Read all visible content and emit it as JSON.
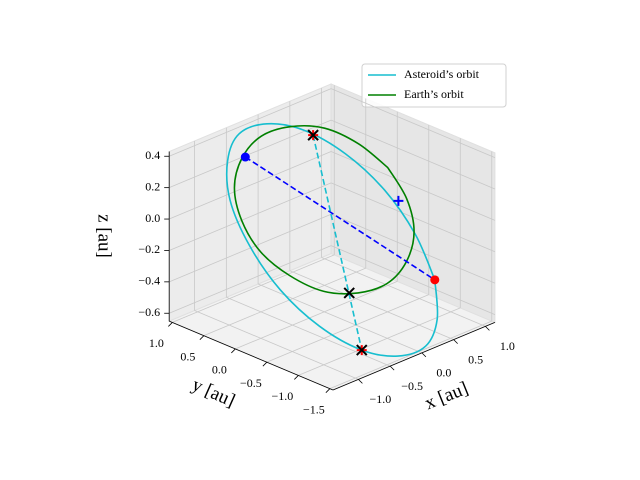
{
  "chart_data": {
    "type": "line3d",
    "x_label": "x [au]",
    "y_label": "y [au]",
    "z_label": "z [au]",
    "xlim": [
      -1.4,
      1.15
    ],
    "ylim": [
      -1.55,
      1.05
    ],
    "zlim": [
      -0.65,
      0.43
    ],
    "xticks": [
      {
        "value": -1.0,
        "label": "−1.0"
      },
      {
        "value": -0.5,
        "label": "−0.5"
      },
      {
        "value": 0.0,
        "label": "0.0"
      },
      {
        "value": 0.5,
        "label": "0.5"
      },
      {
        "value": 1.0,
        "label": "1.0"
      }
    ],
    "yticks": [
      {
        "value": 1.0,
        "label": "1.0"
      },
      {
        "value": 0.5,
        "label": "0.5"
      },
      {
        "value": 0.0,
        "label": "0.0"
      },
      {
        "value": -0.5,
        "label": "−0.5"
      },
      {
        "value": -1.0,
        "label": "−1.0"
      },
      {
        "value": -1.5,
        "label": "−1.5"
      }
    ],
    "zticks": [
      0.4,
      0.2,
      {
        "value": 0.0,
        "label": "0.0"
      },
      {
        "value": -0.2,
        "label": "−0.2"
      },
      {
        "value": -0.4,
        "label": "−0.4"
      },
      {
        "value": -0.6,
        "label": "−0.6"
      }
    ],
    "grid": true,
    "legend": "upper right",
    "series": [
      {
        "name": "Asteroid’s orbit",
        "color": "#17becf",
        "x": [
          0.59,
          0.34,
          0.04,
          -0.28,
          -0.57,
          -0.78,
          -0.88,
          -0.85,
          -0.71,
          -0.46,
          -0.16,
          0.16,
          0.45,
          0.66,
          0.76,
          0.73,
          0.59
        ],
        "y": [
          -1.16,
          -1.45,
          -1.57,
          -1.45,
          -1.16,
          -0.71,
          -0.19,
          0.33,
          0.78,
          1.07,
          1.19,
          1.07,
          0.78,
          0.33,
          -0.19,
          -0.71,
          -1.16
        ],
        "z": [
          -0.35,
          -0.51,
          -0.61,
          -0.64,
          -0.6,
          -0.49,
          -0.33,
          -0.14,
          0.05,
          0.21,
          0.31,
          0.34,
          0.3,
          0.19,
          0.03,
          -0.16,
          -0.35
        ]
      },
      {
        "name": "Earth’s orbit",
        "color": "#008000",
        "x": [
          1,
          0.92,
          0.71,
          0.38,
          0,
          -0.38,
          -0.71,
          -0.92,
          -1,
          -0.92,
          -0.71,
          -0.38,
          0,
          0.38,
          0.71,
          0.92,
          1
        ],
        "y": [
          0,
          0.38,
          0.71,
          0.92,
          1,
          0.92,
          0.71,
          0.38,
          0,
          -0.38,
          -0.71,
          -0.92,
          -1,
          -0.92,
          -0.71,
          -0.38,
          0
        ],
        "z": [
          0.1,
          0.2,
          0.28,
          0.31,
          0.3,
          0.24,
          0.14,
          0.02,
          -0.1,
          -0.2,
          -0.28,
          -0.31,
          -0.3,
          -0.24,
          -0.14,
          -0.02,
          0.1
        ]
      }
    ],
    "dashed_lines": [
      {
        "color": "#0000ff",
        "x": [
          -0.37,
          0.59
        ],
        "y": [
          0.88,
          -1.16
        ],
        "z": [
          0.25,
          -0.35
        ]
      },
      {
        "color": "#17becf",
        "x": [
          0.43,
          -0.57
        ],
        "y": [
          0.61,
          -1.17
        ],
        "z": [
          0.3,
          -0.6
        ]
      }
    ],
    "markers": [
      {
        "marker": "dot",
        "color": "#ff0000",
        "x": [
          0.59
        ],
        "y": [
          -1.16
        ],
        "z": [
          -0.35
        ]
      },
      {
        "marker": "dot",
        "color": "#0000ff",
        "x": [
          -0.37
        ],
        "y": [
          0.88
        ],
        "z": [
          0.25
        ]
      },
      {
        "marker": "plus",
        "color": "#0000ff",
        "x": [
          0.9
        ],
        "y": [
          -0.27
        ],
        "z": [
          -0.05
        ]
      },
      {
        "marker": "plus",
        "color": "#ff0000",
        "x": [
          0.43,
          -0.57
        ],
        "y": [
          0.61,
          -1.17
        ],
        "z": [
          0.3,
          -0.6
        ]
      },
      {
        "marker": "cross",
        "color": "#000000",
        "x": [
          0.43,
          -0.48,
          -0.57
        ],
        "y": [
          0.61,
          -0.88,
          -1.17
        ],
        "z": [
          0.3,
          -0.3,
          -0.6
        ]
      }
    ]
  }
}
